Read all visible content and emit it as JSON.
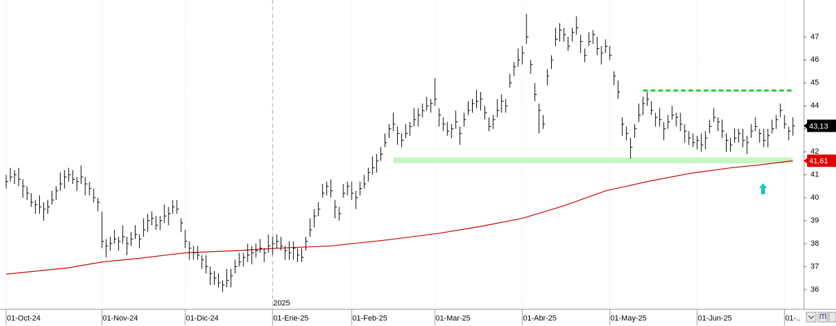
{
  "chart_data": {
    "type": "ohlc",
    "xlim": [
      -1.49,
      191.6
    ],
    "ylim": [
      35.16,
      48.61
    ],
    "yticks": [
      36,
      37,
      38,
      39,
      40,
      41,
      42,
      43,
      44,
      45,
      46,
      47
    ],
    "xticks": [
      {
        "value": 0,
        "label": "01-Oct-24"
      },
      {
        "value": 23,
        "label": "01-Nov-24"
      },
      {
        "value": 43,
        "label": "01-Dic-24"
      },
      {
        "value": 64,
        "label": "01-Ene-25"
      },
      {
        "value": 83,
        "label": "01-Feb-25"
      },
      {
        "value": 103,
        "label": "01-Mar-25"
      },
      {
        "value": 124,
        "label": "01-Abr-25"
      },
      {
        "value": 145,
        "label": "01-May-25"
      },
      {
        "value": 166,
        "label": "01-Jun-25"
      },
      {
        "value": 187,
        "label": "01-.."
      }
    ],
    "grid": true,
    "year_marker": {
      "x": 64,
      "label": "2025"
    },
    "bars": {
      "color": "#000000",
      "high": [
        41.0,
        41.3,
        41.2,
        41.3,
        40.8,
        40.5,
        40.2,
        39.9,
        40.1,
        39.8,
        39.9,
        40.3,
        40.5,
        41.1,
        41.2,
        41.3,
        41.2,
        40.9,
        41.4,
        40.9,
        40.7,
        40.4,
        40.0,
        39.4,
        38.2,
        38.3,
        38.6,
        38.3,
        38.8,
        38.3,
        38.5,
        38.8,
        38.4,
        39.1,
        39.3,
        39.4,
        39.2,
        39.2,
        39.7,
        39.6,
        39.9,
        39.9,
        39.1,
        38.6,
        38.1,
        37.9,
        37.9,
        37.5,
        37.5,
        37.0,
        36.8,
        36.7,
        36.4,
        36.9,
        36.9,
        37.3,
        37.6,
        37.6,
        38.0,
        37.9,
        38.0,
        38.2,
        37.8,
        38.4,
        38.3,
        38.4,
        38.3,
        37.9,
        38.1,
        38.1,
        37.8,
        37.8,
        38.3,
        39.1,
        39.5,
        39.8,
        40.6,
        40.7,
        40.8,
        39.9,
        39.6,
        40.6,
        40.7,
        40.7,
        40.3,
        40.7,
        41.0,
        41.3,
        41.8,
        41.9,
        42.2,
        42.8,
        43.2,
        43.7,
        43.1,
        42.8,
        43.2,
        43.3,
        43.9,
        43.9,
        44.1,
        44.4,
        44.3,
        45.2,
        43.9,
        43.5,
        43.3,
        43.2,
        43.8,
        43.1,
        43.7,
        44.2,
        44.3,
        44.7,
        44.6,
        44.0,
        43.5,
        43.6,
        44.3,
        44.5,
        44.3,
        45.4,
        45.9,
        46.5,
        46.6,
        48.0,
        46.0,
        45.0,
        44.1,
        43.6,
        45.6,
        46.2,
        47.4,
        47.6,
        47.4,
        47.0,
        47.4,
        47.9,
        47.1,
        46.5,
        47.2,
        47.3,
        47.0,
        46.6,
        46.9,
        46.6,
        45.5,
        45.1,
        43.5,
        43.1,
        42.6,
        43.2,
        44.1,
        44.4,
        44.6,
        44.2,
        43.7,
        43.9,
        43.3,
        43.6,
        44.0,
        43.7,
        43.7,
        43.2,
        42.9,
        42.8,
        42.7,
        42.8,
        42.9,
        43.4,
        43.9,
        43.5,
        43.4,
        42.8,
        42.6,
        43.0,
        43.0,
        43.0,
        42.7,
        43.2,
        43.5,
        43.0,
        43.0,
        43.0,
        43.4,
        43.6,
        44.1,
        43.6,
        43.1,
        43.5
      ],
      "low": [
        40.4,
        40.7,
        40.6,
        40.5,
        40.0,
        39.9,
        39.6,
        39.3,
        39.3,
        39.0,
        39.3,
        39.7,
        39.9,
        40.3,
        40.4,
        40.7,
        40.6,
        40.3,
        40.6,
        40.1,
        40.1,
        39.8,
        39.4,
        37.8,
        37.4,
        37.7,
        38.0,
        37.7,
        38.0,
        37.5,
        37.9,
        38.2,
        37.8,
        38.3,
        38.5,
        38.8,
        38.6,
        38.6,
        38.9,
        38.8,
        39.3,
        39.3,
        38.5,
        37.8,
        37.3,
        37.3,
        37.3,
        36.9,
        36.7,
        36.2,
        36.2,
        36.1,
        35.9,
        36.1,
        36.1,
        36.7,
        37.0,
        37.0,
        37.2,
        37.1,
        37.4,
        37.6,
        37.2,
        37.6,
        37.5,
        37.8,
        37.7,
        37.3,
        37.3,
        37.3,
        37.2,
        37.2,
        37.7,
        38.3,
        38.7,
        39.2,
        40.0,
        40.1,
        40.0,
        39.1,
        39.0,
        40.0,
        40.1,
        39.9,
        39.5,
        40.1,
        40.4,
        40.7,
        41.0,
        41.1,
        41.6,
        42.2,
        42.6,
        42.9,
        42.3,
        42.2,
        42.6,
        42.7,
        43.1,
        43.1,
        43.5,
        43.8,
        43.7,
        44.0,
        43.1,
        42.9,
        42.7,
        42.6,
        43.0,
        42.3,
        43.1,
        43.6,
        43.7,
        43.9,
        43.8,
        43.4,
        42.9,
        43.0,
        43.5,
        43.7,
        43.7,
        44.8,
        45.3,
        45.7,
        45.8,
        46.7,
        45.4,
        44.2,
        42.8,
        43.0,
        44.9,
        45.6,
        46.6,
        46.8,
        46.8,
        46.4,
        46.8,
        47.1,
        46.3,
        45.9,
        46.6,
        46.7,
        46.2,
        45.8,
        46.3,
        46.0,
        44.9,
        44.3,
        42.7,
        42.5,
        41.7,
        42.6,
        43.3,
        43.6,
        44.0,
        43.6,
        43.1,
        43.1,
        42.5,
        43.0,
        43.4,
        43.1,
        42.9,
        42.4,
        42.3,
        42.2,
        42.1,
        42.0,
        42.1,
        42.8,
        43.3,
        42.9,
        42.6,
        42.0,
        42.0,
        42.4,
        42.4,
        42.2,
        41.9,
        42.6,
        42.9,
        42.4,
        42.2,
        42.2,
        42.8,
        43.0,
        43.5,
        43.0,
        42.5,
        42.7
      ],
      "close": [
        40.7,
        40.9,
        41.0,
        40.8,
        40.5,
        40.2,
        39.8,
        39.7,
        39.6,
        39.5,
        39.6,
        39.9,
        40.3,
        40.6,
        40.9,
        41.0,
        40.8,
        40.7,
        40.9,
        40.6,
        40.4,
        40.0,
        39.8,
        38.1,
        37.9,
        38.0,
        38.2,
        38.1,
        38.3,
        38.0,
        38.2,
        38.4,
        38.2,
        38.6,
        39.0,
        39.1,
        38.8,
        39.0,
        39.2,
        39.3,
        39.6,
        39.5,
        38.9,
        38.1,
        37.8,
        37.6,
        37.5,
        37.3,
        37.0,
        36.7,
        36.5,
        36.3,
        36.2,
        36.4,
        36.6,
        37.0,
        37.2,
        37.4,
        37.5,
        37.6,
        37.7,
        37.8,
        37.6,
        37.9,
        38.0,
        38.1,
        37.9,
        37.7,
        37.6,
        37.8,
        37.5,
        37.4,
        38.1,
        38.6,
        39.2,
        39.5,
        40.2,
        40.5,
        40.3,
        39.6,
        39.3,
        40.2,
        40.5,
        40.2,
        40.0,
        40.4,
        40.6,
        41.1,
        41.3,
        41.6,
        41.9,
        42.4,
        43.0,
        43.2,
        42.8,
        42.5,
        42.8,
        43.1,
        43.4,
        43.6,
        43.8,
        44.0,
        44.1,
        44.3,
        43.6,
        43.2,
        42.9,
        43.0,
        43.3,
        42.8,
        43.4,
        43.8,
        44.1,
        44.2,
        44.3,
        43.7,
        43.1,
        43.4,
        43.8,
        44.2,
        44.0,
        45.0,
        45.7,
        46.0,
        46.3,
        47.0,
        45.8,
        44.5,
        43.8,
        43.2,
        45.3,
        46.0,
        46.9,
        47.3,
        47.1,
        46.6,
        47.2,
        47.4,
        46.8,
        46.2,
        46.8,
        47.1,
        46.5,
        46.3,
        46.6,
        46.2,
        45.3,
        44.6,
        43.2,
        42.8,
        42.2,
        43.0,
        43.6,
        44.1,
        44.3,
        43.8,
        43.5,
        43.4,
        43.0,
        43.3,
        43.6,
        43.5,
        43.2,
        42.9,
        42.6,
        42.4,
        42.5,
        42.3,
        42.6,
        43.1,
        43.5,
        43.3,
        42.9,
        42.5,
        42.3,
        42.6,
        42.8,
        42.5,
        42.4,
        42.9,
        43.1,
        42.8,
        42.5,
        42.7,
        43.0,
        43.4,
        43.8,
        43.2,
        42.9,
        43.13
      ]
    },
    "moving_average": {
      "color": "#cc0000",
      "x": [
        0,
        15,
        23,
        32,
        43,
        56,
        65,
        78,
        91,
        104,
        114,
        124,
        134,
        144,
        154,
        164,
        174,
        181,
        189
      ],
      "values": [
        36.67,
        36.95,
        37.2,
        37.36,
        37.6,
        37.7,
        37.8,
        37.9,
        38.15,
        38.45,
        38.75,
        39.1,
        39.65,
        40.3,
        40.7,
        41.05,
        41.3,
        41.43,
        41.61
      ]
    },
    "last_close": {
      "value": 43.13,
      "label": "43,13",
      "color": "#000000"
    },
    "last_average": {
      "value": 41.61,
      "label": "41,61",
      "color": "#e00000"
    },
    "resistance": {
      "value": 44.67,
      "x": [
        153,
        189
      ],
      "color": "#22cc22"
    },
    "support_band": {
      "low": 41.5,
      "high": 41.75,
      "x": [
        93,
        189
      ],
      "color": "#c6f5c0"
    }
  }
}
